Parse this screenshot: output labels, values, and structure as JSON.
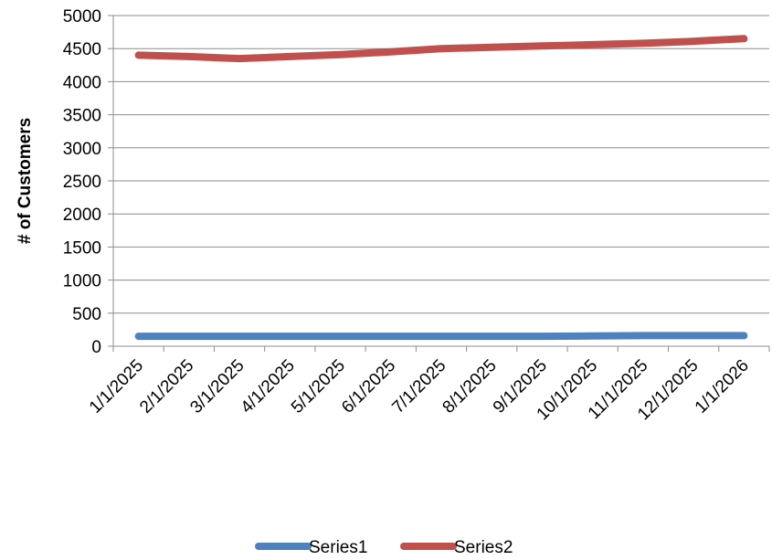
{
  "chart_data": {
    "type": "line",
    "title": "",
    "xlabel": "",
    "ylabel": "# of Customers",
    "ylim": [
      0,
      5000
    ],
    "yticks": [
      0,
      500,
      1000,
      1500,
      2000,
      2500,
      3000,
      3500,
      4000,
      4500,
      5000
    ],
    "grid": true,
    "legend_position": "bottom",
    "categories": [
      "1/1/2025",
      "2/1/2025",
      "3/1/2025",
      "4/1/2025",
      "5/1/2025",
      "6/1/2025",
      "7/1/2025",
      "8/1/2025",
      "9/1/2025",
      "10/1/2025",
      "11/1/2025",
      "12/1/2025",
      "1/1/2026"
    ],
    "series": [
      {
        "name": "Series1",
        "color": "#4f81bd",
        "values": [
          150,
          150,
          150,
          150,
          150,
          150,
          150,
          150,
          150,
          155,
          160,
          160,
          160
        ]
      },
      {
        "name": "Series2",
        "color": "#c0504d",
        "values": [
          4400,
          4380,
          4350,
          4380,
          4410,
          4450,
          4500,
          4520,
          4540,
          4560,
          4580,
          4610,
          4650
        ]
      }
    ]
  }
}
